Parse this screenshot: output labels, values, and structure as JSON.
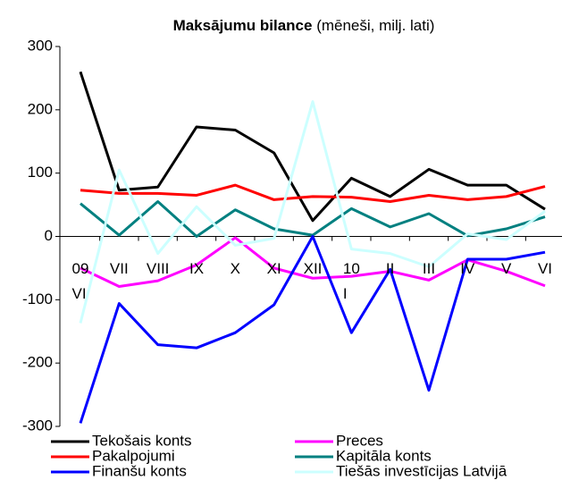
{
  "chart_data": {
    "type": "line",
    "title": "Maksājumu bilance",
    "subtitle": "(mēneši, milj. lati)",
    "categories": [
      "09\nVI",
      "VII",
      "VIII",
      "IX",
      "X",
      "XI",
      "XII",
      "10\nI",
      "II",
      "III",
      "IV",
      "V",
      "VI"
    ],
    "ylim": [
      -300,
      300
    ],
    "yticks": [
      -300,
      -200,
      -100,
      0,
      100,
      200,
      300
    ],
    "grid": false,
    "legend": "bottom",
    "series": [
      {
        "name": "Tekošais konts",
        "color": "#000000",
        "values": [
          260,
          73,
          78,
          173,
          168,
          132,
          25,
          92,
          63,
          106,
          81,
          81,
          43
        ]
      },
      {
        "name": "Preces",
        "color": "#ff00ff",
        "values": [
          -50,
          -79,
          -70,
          -45,
          -2,
          -50,
          -66,
          -63,
          -55,
          -69,
          -37,
          -55,
          -78
        ]
      },
      {
        "name": "Pakalpojumi",
        "color": "#ff0000",
        "values": [
          73,
          68,
          68,
          65,
          81,
          58,
          63,
          62,
          55,
          65,
          58,
          63,
          79
        ]
      },
      {
        "name": "Kapitāla konts",
        "color": "#008080",
        "values": [
          52,
          2,
          55,
          0,
          42,
          12,
          2,
          44,
          15,
          36,
          1,
          12,
          31
        ]
      },
      {
        "name": "Finanšu konts",
        "color": "#0000ff",
        "values": [
          -295,
          -106,
          -171,
          -176,
          -152,
          -108,
          0,
          -152,
          -52,
          -243,
          -36,
          -36,
          -25
        ]
      },
      {
        "name": "Tiešās investīcijas Latvijā",
        "color": "#ccffff",
        "values": [
          -137,
          105,
          -27,
          47,
          -14,
          -3,
          213,
          -20,
          -27,
          -48,
          4,
          -5,
          40
        ]
      }
    ]
  }
}
